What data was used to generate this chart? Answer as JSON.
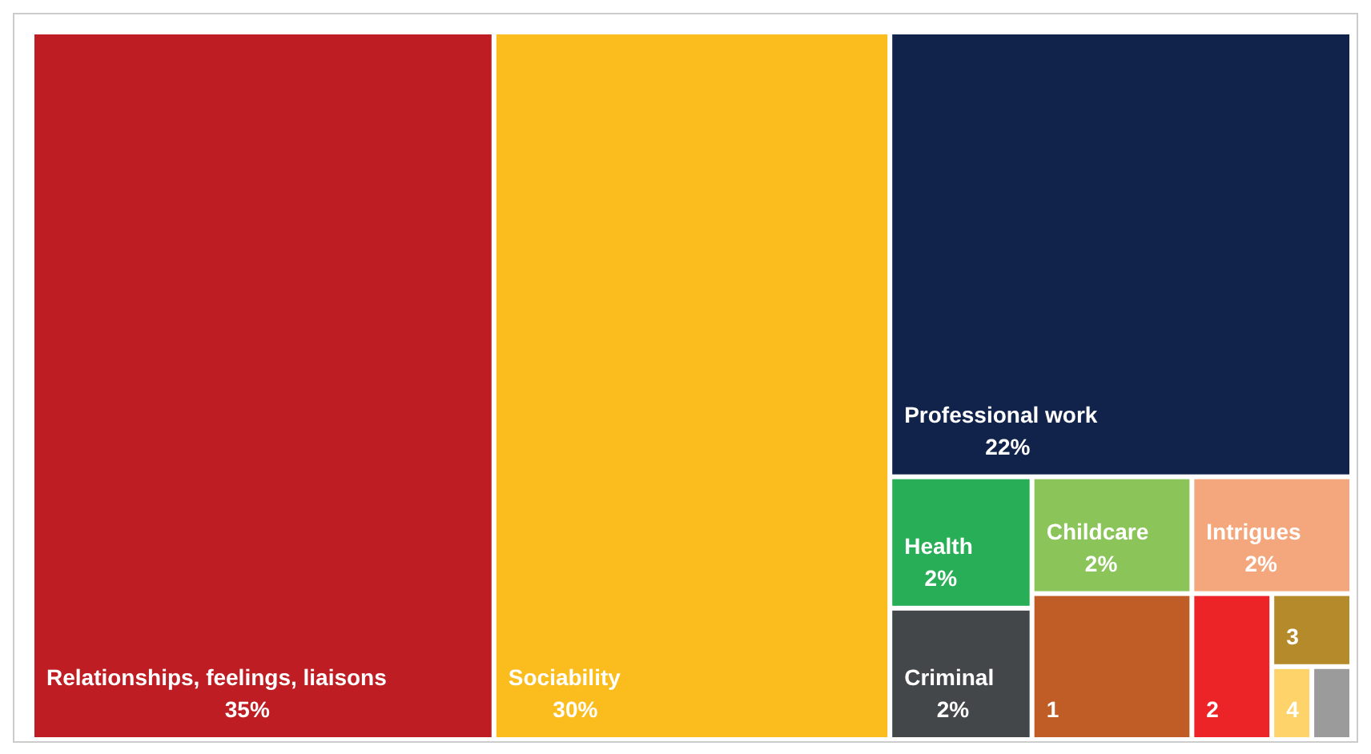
{
  "chart_data": {
    "type": "other",
    "categories": [
      "Relationships, feelings, liaisons",
      "Sociability",
      "Professional work",
      "Health",
      "Criminal",
      "Childcare",
      "1",
      "Intrigues",
      "2",
      "3",
      "4",
      null
    ],
    "values": [
      35,
      30,
      22,
      2,
      2,
      2,
      null,
      2,
      null,
      null,
      null,
      null
    ],
    "value_labels": [
      "35%",
      "30%",
      "22%",
      "2%",
      "2%",
      "2%",
      null,
      "2%",
      null,
      null,
      null,
      null
    ],
    "colors": [
      "#be1e23",
      "#fbbd1e",
      "#12234b",
      "#28ae57",
      "#444749",
      "#8bc55a",
      "#c05d27",
      "#f4a67c",
      "#ec2427",
      "#b58a2a",
      "#fdd36a",
      "#9b9b9b"
    ]
  }
}
